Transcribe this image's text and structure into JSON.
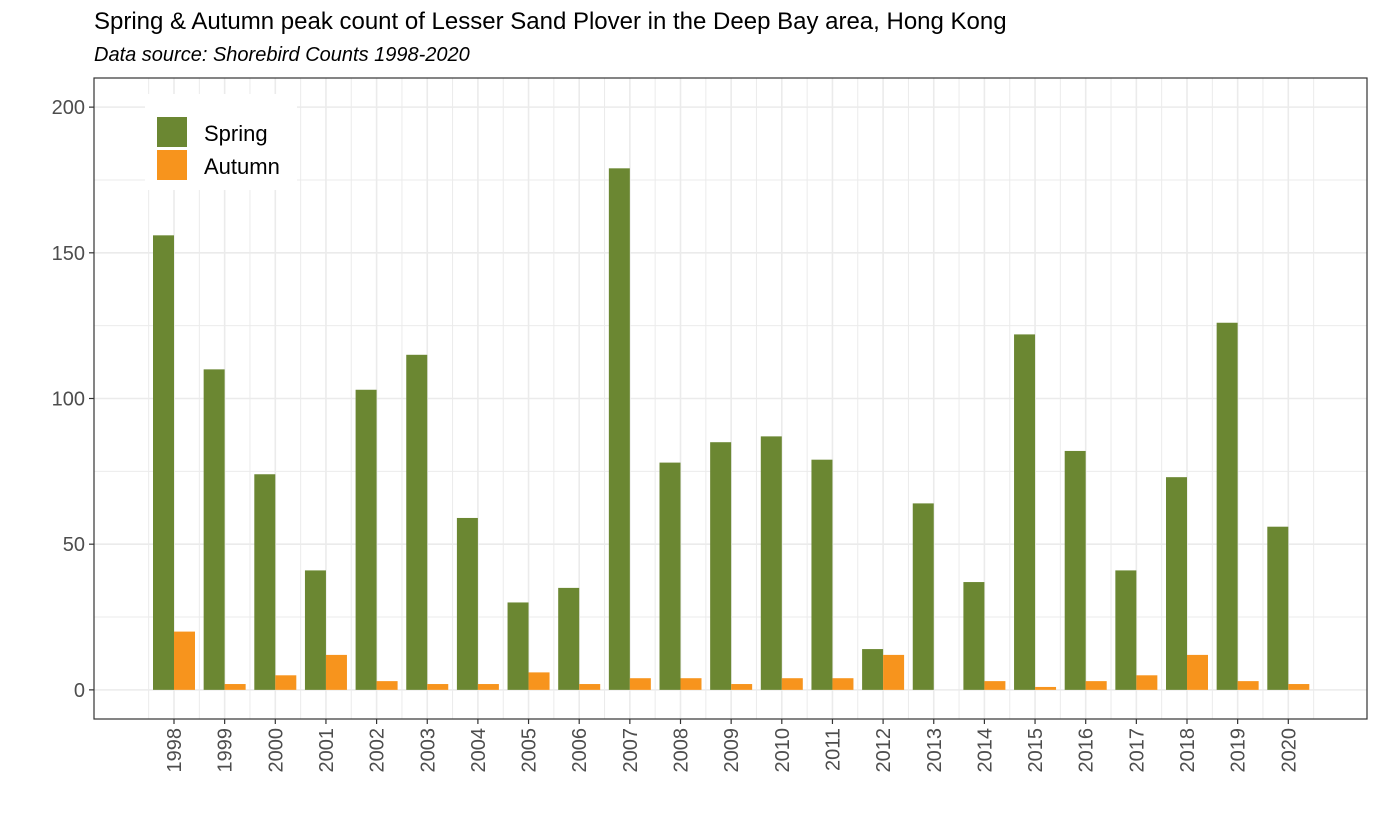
{
  "title": "Spring & Autumn peak count of Lesser Sand Plover in the Deep Bay area, Hong Kong",
  "subtitle": "Data source: Shorebird Counts 1998-2020",
  "colors": {
    "spring": "#6b8732",
    "autumn": "#f7941d",
    "grid": "#ebebeb",
    "panel_border": "#333333"
  },
  "chart_data": {
    "type": "bar",
    "title": "Spring & Autumn peak count of Lesser Sand Plover in the Deep Bay area, Hong Kong",
    "subtitle": "Data source: Shorebird Counts 1998-2020",
    "xlabel": "",
    "ylabel": "",
    "ylim": [
      -10,
      210
    ],
    "yticks": [
      0,
      50,
      100,
      150,
      200
    ],
    "grid": true,
    "legend_position": "top-left",
    "categories": [
      "1998",
      "1999",
      "2000",
      "2001",
      "2002",
      "2003",
      "2004",
      "2005",
      "2006",
      "2007",
      "2008",
      "2009",
      "2010",
      "2011",
      "2012",
      "2013",
      "2014",
      "2015",
      "2016",
      "2017",
      "2018",
      "2019",
      "2020"
    ],
    "series": [
      {
        "name": "Spring",
        "color": "#6b8732",
        "values": [
          156,
          110,
          74,
          41,
          103,
          115,
          59,
          30,
          35,
          179,
          78,
          85,
          87,
          79,
          14,
          64,
          37,
          122,
          82,
          41,
          73,
          126,
          56
        ]
      },
      {
        "name": "Autumn",
        "color": "#f7941d",
        "values": [
          20,
          2,
          5,
          12,
          3,
          2,
          2,
          6,
          2,
          4,
          4,
          2,
          4,
          4,
          12,
          0,
          3,
          1,
          3,
          5,
          12,
          3,
          2
        ]
      }
    ]
  }
}
